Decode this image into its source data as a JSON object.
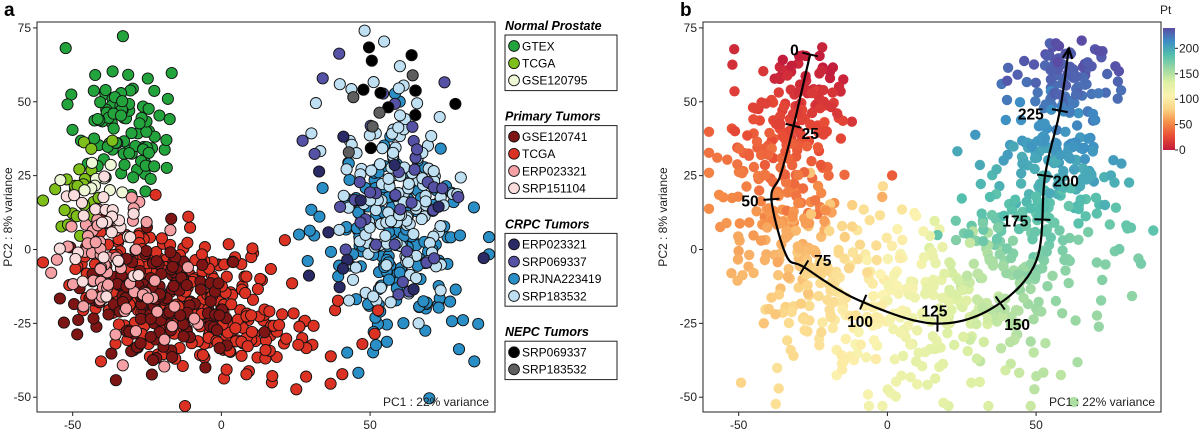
{
  "chart_data": [
    {
      "panel": "a",
      "type": "scatter",
      "xlabel": "PC1 : 22% variance",
      "ylabel": "PC2 : 8% variance",
      "xlim": [
        -62,
        92
      ],
      "ylim": [
        -55,
        77
      ],
      "xticks": [
        -50,
        0,
        50
      ],
      "yticks": [
        75,
        50,
        25,
        0,
        -25,
        -50
      ],
      "legend": [
        {
          "heading": "Normal Prostate",
          "items": [
            {
              "label": "GTEX",
              "color": "#23a33c"
            },
            {
              "label": "TCGA",
              "color": "#7fbf1a"
            },
            {
              "label": "GSE120795",
              "color": "#eef7d6"
            }
          ]
        },
        {
          "heading": "Primary Tumors",
          "items": [
            {
              "label": "GSE120741",
              "color": "#7e1515"
            },
            {
              "label": "TCGA",
              "color": "#dc3223"
            },
            {
              "label": "ERP023321",
              "color": "#f4a0a4"
            },
            {
              "label": "SRP151104",
              "color": "#fbdcdc"
            }
          ]
        },
        {
          "heading": "CRPC Tumors",
          "items": [
            {
              "label": "ERP023321",
              "color": "#292a66"
            },
            {
              "label": "SRP069337",
              "color": "#5552a6"
            },
            {
              "label": "PRJNA223419",
              "color": "#2a8fc6"
            },
            {
              "label": "SRP183532",
              "color": "#bfe0f2"
            }
          ]
        },
        {
          "heading": "NEPC Tumors",
          "items": [
            {
              "label": "SRP069337",
              "color": "#000000"
            },
            {
              "label": "SRP183532",
              "color": "#5e5e5e"
            }
          ]
        }
      ],
      "groups": [
        {
          "id": "gtex",
          "color": "#23a33c",
          "n": 95,
          "cx": -33,
          "cy": 42,
          "sx": 8,
          "sy": 12,
          "rho": -0.1
        },
        {
          "id": "tcga-normal",
          "color": "#7fbf1a",
          "n": 28,
          "cx": -49,
          "cy": 20,
          "sx": 6,
          "sy": 8,
          "rho": 0.3
        },
        {
          "id": "gse120795",
          "color": "#eef7d6",
          "n": 10,
          "cx": -42,
          "cy": 24,
          "sx": 5,
          "sy": 4,
          "rho": 0
        },
        {
          "id": "crpc-prjna223419",
          "color": "#2a8fc6",
          "n": 185,
          "cx": 60,
          "cy": 2,
          "sx": 12,
          "sy": 19,
          "rho": -0.2
        },
        {
          "id": "crpc-srp183532",
          "color": "#bfe0f2",
          "n": 140,
          "cx": 60,
          "cy": 18,
          "sx": 11,
          "sy": 20,
          "rho": 0
        },
        {
          "id": "crpc-srp069337",
          "color": "#5552a6",
          "n": 40,
          "cx": 58,
          "cy": 22,
          "sx": 13,
          "sy": 20,
          "rho": 0
        },
        {
          "id": "crpc-erp023321",
          "color": "#292a66",
          "n": 12,
          "cx": 50,
          "cy": 15,
          "sx": 13,
          "sy": 20,
          "rho": 0
        },
        {
          "id": "pt-tcga",
          "color": "#dc3223",
          "n": 300,
          "cx": -8,
          "cy": -18,
          "sx": 21,
          "sy": 12,
          "rho": -0.4
        },
        {
          "id": "pt-gse120741",
          "color": "#7e1515",
          "n": 150,
          "cx": -22,
          "cy": -18,
          "sx": 14,
          "sy": 11,
          "rho": -0.3
        },
        {
          "id": "pt-erp023321",
          "color": "#f4a0a4",
          "n": 65,
          "cx": -37,
          "cy": -7,
          "sx": 10,
          "sy": 12,
          "rho": -0.3
        },
        {
          "id": "pt-srp151104",
          "color": "#fbdcdc",
          "n": 28,
          "cx": -40,
          "cy": 2,
          "sx": 10,
          "sy": 12,
          "rho": -0.2
        },
        {
          "id": "nepc-srp069337",
          "color": "#000000",
          "n": 10,
          "cx": 62,
          "cy": 55,
          "sx": 8,
          "sy": 11,
          "rho": 0
        },
        {
          "id": "nepc-srp183532",
          "color": "#5e5e5e",
          "n": 5,
          "cx": 56,
          "cy": 58,
          "sx": 6,
          "sy": 11,
          "rho": 0
        }
      ]
    },
    {
      "panel": "b",
      "type": "scatter",
      "xlabel": "PC1 : 22% variance",
      "ylabel": "PC2 : 8% variance",
      "xlim": [
        -62,
        92
      ],
      "ylim": [
        -55,
        77
      ],
      "xticks": [
        -50,
        0,
        50
      ],
      "yticks": [
        75,
        50,
        25,
        0,
        -25,
        -50
      ],
      "color_scale": {
        "title": "Pt",
        "ticks": [
          0,
          50,
          100,
          150,
          200
        ],
        "range": [
          0,
          240
        ],
        "stops": [
          "#c21c3c",
          "#e84b35",
          "#f58d48",
          "#fbd283",
          "#fbf3b0",
          "#ddf0a3",
          "#9bd8a3",
          "#54bfad",
          "#3d8fc4",
          "#5a4ba5"
        ]
      },
      "n_points": 1000,
      "trajectory": {
        "path": [
          [
            -26,
            66
          ],
          [
            -32,
            40
          ],
          [
            -36,
            25
          ],
          [
            -39,
            17
          ],
          [
            -34,
            -2
          ],
          [
            -28,
            -6
          ],
          [
            -10,
            -17
          ],
          [
            15,
            -25
          ],
          [
            35,
            -20
          ],
          [
            50,
            -4
          ],
          [
            53,
            25
          ],
          [
            58,
            47
          ],
          [
            61,
            68
          ]
        ],
        "markers": [
          {
            "label": "0",
            "x": -26,
            "y": 66
          },
          {
            "label": "25",
            "x": -31,
            "y": 42
          },
          {
            "label": "50",
            "x": -36,
            "y": 17
          },
          {
            "label": "75",
            "x": -28,
            "y": -6
          },
          {
            "label": "100",
            "x": -9,
            "y": -19
          },
          {
            "label": "125",
            "x": 16,
            "y": -25
          },
          {
            "label": "150",
            "x": 38,
            "y": -18
          },
          {
            "label": "175",
            "x": 49,
            "y": 9
          },
          {
            "label": "200",
            "x": 55,
            "y": 25
          },
          {
            "label": "225",
            "x": 59,
            "y": 47
          }
        ]
      }
    }
  ]
}
